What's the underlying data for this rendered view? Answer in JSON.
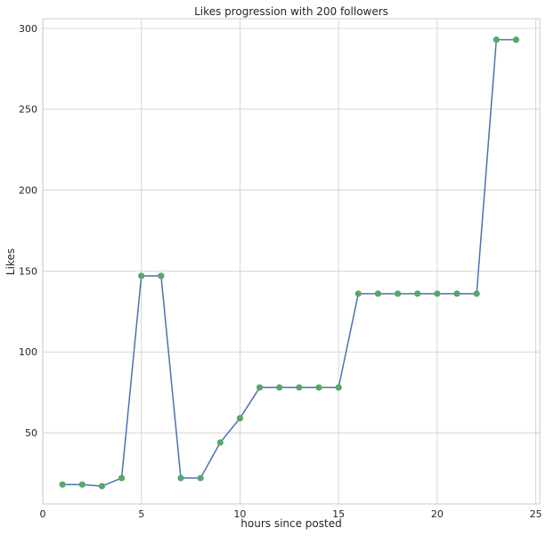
{
  "chart_data": {
    "type": "line",
    "title": "Likes progression with 200 followers",
    "xlabel": "hours since posted",
    "ylabel": "Likes",
    "xlim": [
      0,
      25.2
    ],
    "ylim": [
      6,
      306
    ],
    "xticks": [
      0,
      5,
      10,
      15,
      20,
      25
    ],
    "yticks": [
      50,
      100,
      150,
      200,
      250,
      300
    ],
    "grid": true,
    "line_color": "#4c72b0",
    "marker_color": "#55a868",
    "x": [
      1,
      2,
      3,
      4,
      5,
      6,
      7,
      8,
      9,
      10,
      11,
      12,
      13,
      14,
      15,
      16,
      17,
      18,
      19,
      20,
      21,
      22,
      23,
      24
    ],
    "y": [
      18,
      18,
      17,
      22,
      147,
      147,
      22,
      22,
      44,
      59,
      78,
      78,
      78,
      78,
      78,
      136,
      136,
      136,
      136,
      136,
      136,
      136,
      293,
      293
    ]
  }
}
